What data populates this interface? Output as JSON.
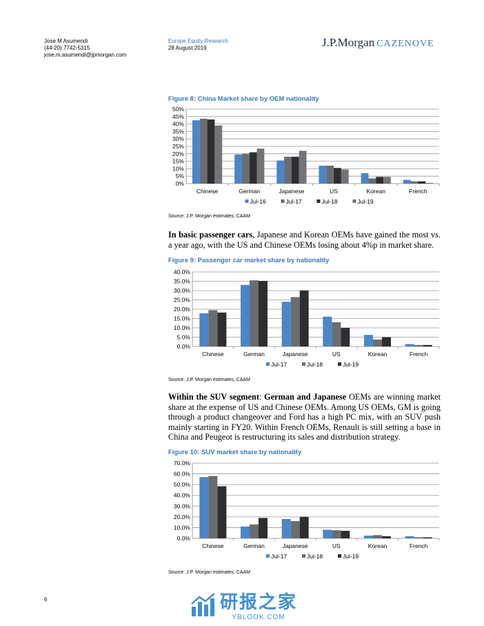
{
  "header": {
    "author": "Jose M Asumendi",
    "phone": "(44-20) 7742-5315",
    "email": "jose.m.asumendi@jpmorgan.com",
    "publication": "Europe Equity Research",
    "date": "28 August 2019",
    "logo_main": "J.P.Morgan",
    "logo_sub": "CAZENOVE"
  },
  "figures": [
    {
      "title": "Figure 8: China Market share by OEM nationality",
      "source": "Source: J.P. Morgan estimates, CAAM"
    },
    {
      "title": "Figure 9: Passenger car market share by nationality",
      "source": "Source: J.P. Morgan estimates, CAAM"
    },
    {
      "title": "Figure 10: SUV market share by nationality",
      "source": "Source: J.P. Morgan estimates, CAAM"
    }
  ],
  "paragraphs": [
    {
      "bold1": "In basic passenger cars",
      "text1": ", Japanese and Korean OEMs have gained the most vs. a year ago, with the US and Chinese OEMs losing about 4%p in market share."
    },
    {
      "bold1": "Within the SUV segment",
      "text1": ": ",
      "bold2": "German and Japanese",
      "text2": " OEMs are winning market share at the expense of US and Chinese OEMs. Among US OEMs, GM is going through a product changeover and Ford has a high PC mix, with an SUV push mainly starting in FY20. Within French OEMs, Renault is still setting a base in China and Peugeot is restructuring its sales and distribution strategy."
    }
  ],
  "footer": {
    "page_number": "6",
    "watermark_cn": "研报之家",
    "watermark_en": "YBLOOK.COM"
  },
  "chart_data": [
    {
      "type": "bar",
      "title": "Figure 8: China Market share by OEM nationality",
      "categories": [
        "Chinese",
        "German",
        "Japanese",
        "US",
        "Korean",
        "French"
      ],
      "ylim": [
        0,
        50
      ],
      "yticks": [
        0,
        5,
        10,
        15,
        20,
        25,
        30,
        35,
        40,
        45,
        50
      ],
      "ytick_format": "0%",
      "yticklabels": [
        "0%",
        "5%",
        "10%",
        "15%",
        "20%",
        "25%",
        "30%",
        "35%",
        "40%",
        "45%",
        "50%"
      ],
      "grid": true,
      "legend": "bottom",
      "series": [
        {
          "name": "Jul-16",
          "color": "#4a86c8",
          "values": [
            42.5,
            19.5,
            15.5,
            12.0,
            7.0,
            2.5
          ]
        },
        {
          "name": "Jul-17",
          "color": "#6b6c70",
          "values": [
            43.5,
            20.0,
            18.0,
            12.0,
            3.5,
            1.5
          ]
        },
        {
          "name": "Jul-18",
          "color": "#2e2e30",
          "values": [
            43.0,
            21.0,
            18.0,
            10.5,
            4.5,
            1.5
          ]
        },
        {
          "name": "Jul-19",
          "color": "#737477",
          "values": [
            39.0,
            23.5,
            22.0,
            9.5,
            4.5,
            0.5
          ]
        }
      ]
    },
    {
      "type": "bar",
      "title": "Figure 9: Passenger car market share by nationality",
      "categories": [
        "Chinese",
        "German",
        "Japanese",
        "US",
        "Korean",
        "French"
      ],
      "ylim": [
        0,
        40
      ],
      "yticks": [
        0,
        5,
        10,
        15,
        20,
        25,
        30,
        35,
        40
      ],
      "yticklabels": [
        "0.0%",
        "5.0%",
        "10.0%",
        "15.0%",
        "20.0%",
        "25.0%",
        "30.0%",
        "35.0%",
        "40.0%"
      ],
      "grid": true,
      "legend": "bottom",
      "series": [
        {
          "name": "Jul-17",
          "color": "#4a86c8",
          "values": [
            17.8,
            33.0,
            24.0,
            16.0,
            6.2,
            1.3
          ]
        },
        {
          "name": "Jul-18",
          "color": "#6b6c70",
          "values": [
            19.5,
            35.5,
            26.5,
            13.0,
            3.7,
            0.8
          ]
        },
        {
          "name": "Jul-19",
          "color": "#2e2e30",
          "values": [
            18.2,
            35.2,
            30.0,
            10.0,
            5.0,
            0.8
          ]
        }
      ]
    },
    {
      "type": "bar",
      "title": "Figure 10: SUV market share by nationality",
      "categories": [
        "Chinese",
        "German",
        "Japanese",
        "US",
        "Korean",
        "French"
      ],
      "ylim": [
        0,
        70
      ],
      "yticks": [
        0,
        10,
        20,
        30,
        40,
        50,
        60,
        70
      ],
      "yticklabels": [
        "0.0%",
        "10.0%",
        "20.0%",
        "30.0%",
        "40.0%",
        "50.0%",
        "60.0%",
        "70.0%"
      ],
      "grid": true,
      "legend": "bottom",
      "series": [
        {
          "name": "Jul-17",
          "color": "#4a86c8",
          "values": [
            57.0,
            11.0,
            18.0,
            8.0,
            2.5,
            2.0
          ]
        },
        {
          "name": "Jul-18",
          "color": "#6b6c70",
          "values": [
            58.0,
            13.0,
            16.0,
            7.5,
            3.0,
            1.0
          ]
        },
        {
          "name": "Jul-19",
          "color": "#2e2e30",
          "values": [
            48.5,
            19.0,
            20.0,
            7.0,
            2.0,
            1.0
          ]
        }
      ]
    }
  ]
}
